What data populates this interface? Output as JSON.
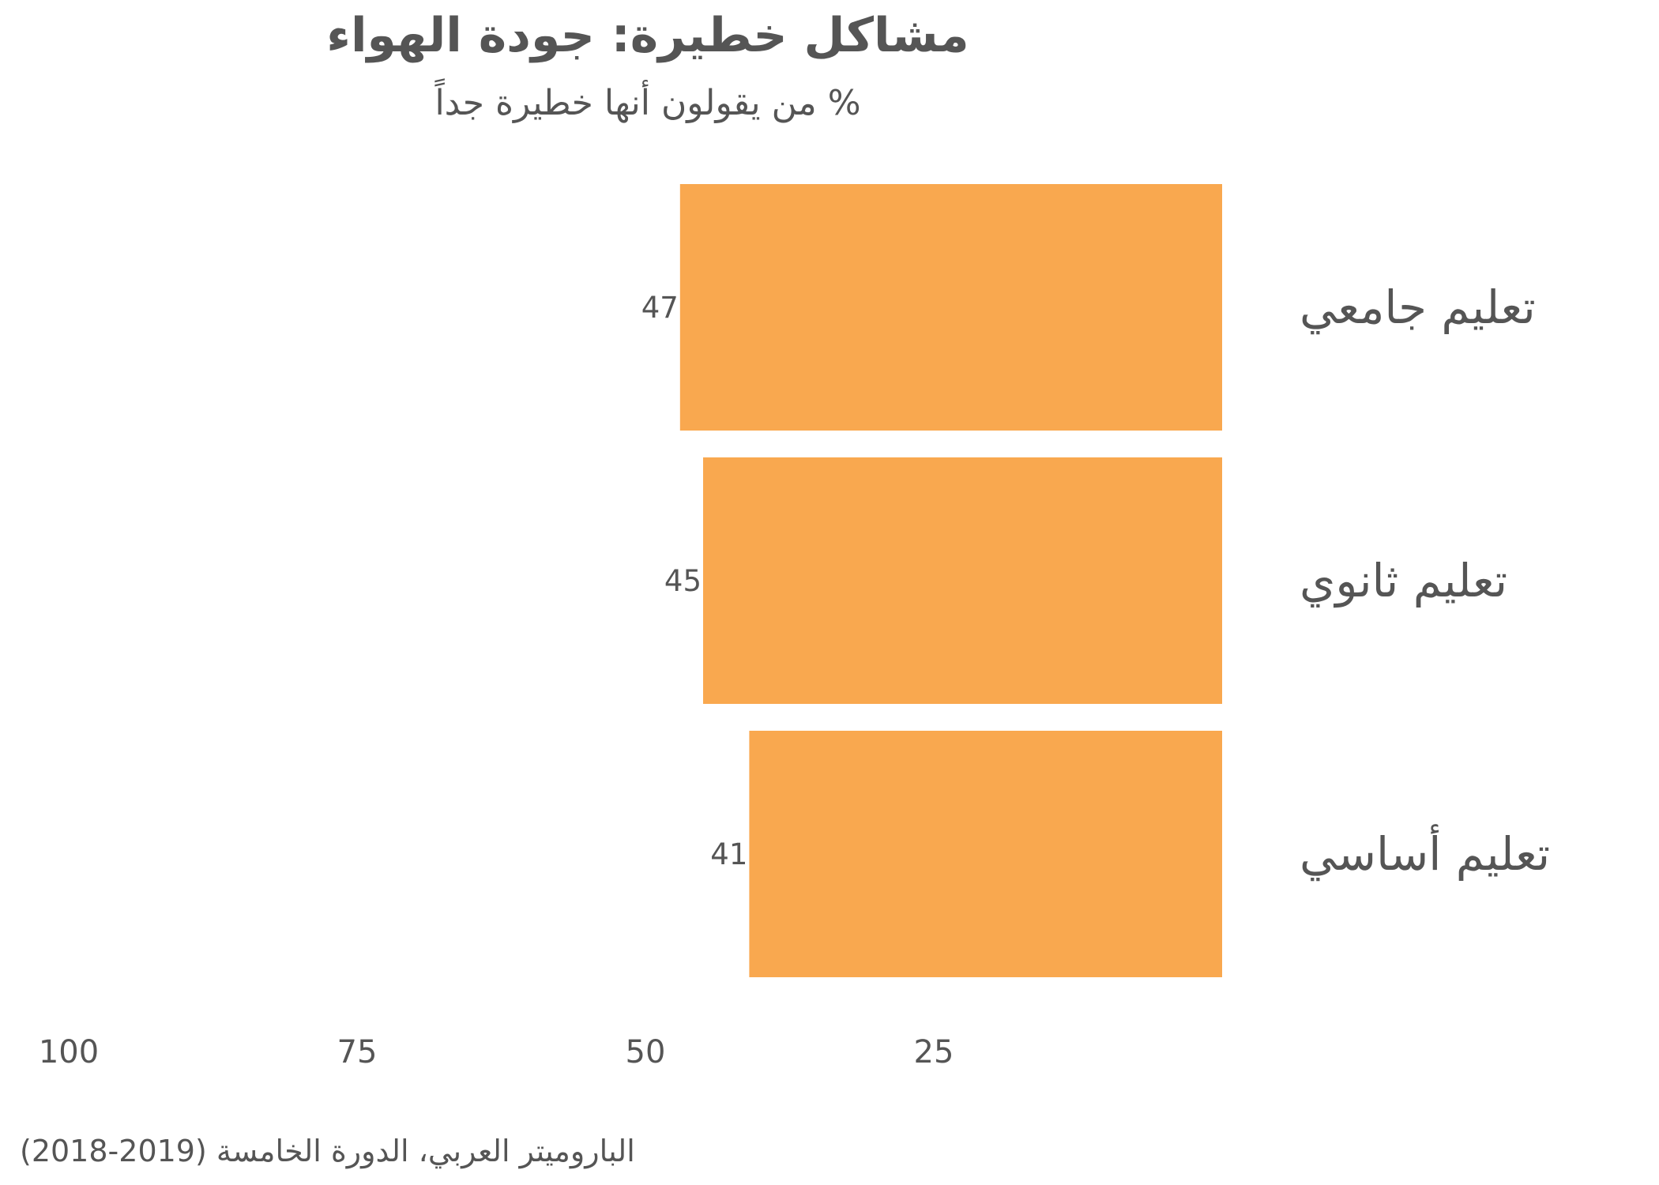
{
  "chart_data": {
    "type": "bar",
    "orientation": "horizontal",
    "direction": "right-to-left",
    "title": "مشاكل خطيرة: جودة الهواء",
    "subtitle": "% من يقولون أنها خطيرة جداً",
    "categories": [
      "تعليم جامعي",
      "تعليم ثانوي",
      "تعليم أساسي"
    ],
    "values": [
      47,
      45,
      41
    ],
    "data_labels": [
      "47",
      "45",
      "41"
    ],
    "xlim": [
      0,
      100
    ],
    "x_ticks": [
      100,
      75,
      50,
      25
    ],
    "x_tick_labels": [
      "100",
      "75",
      "50",
      "25"
    ],
    "grid": false,
    "legend": "none",
    "bar_color": "#F9A84F",
    "text_color": "#555555",
    "source": "الباروميتر العربي، الدورة الخامسة (2019-2018)"
  }
}
